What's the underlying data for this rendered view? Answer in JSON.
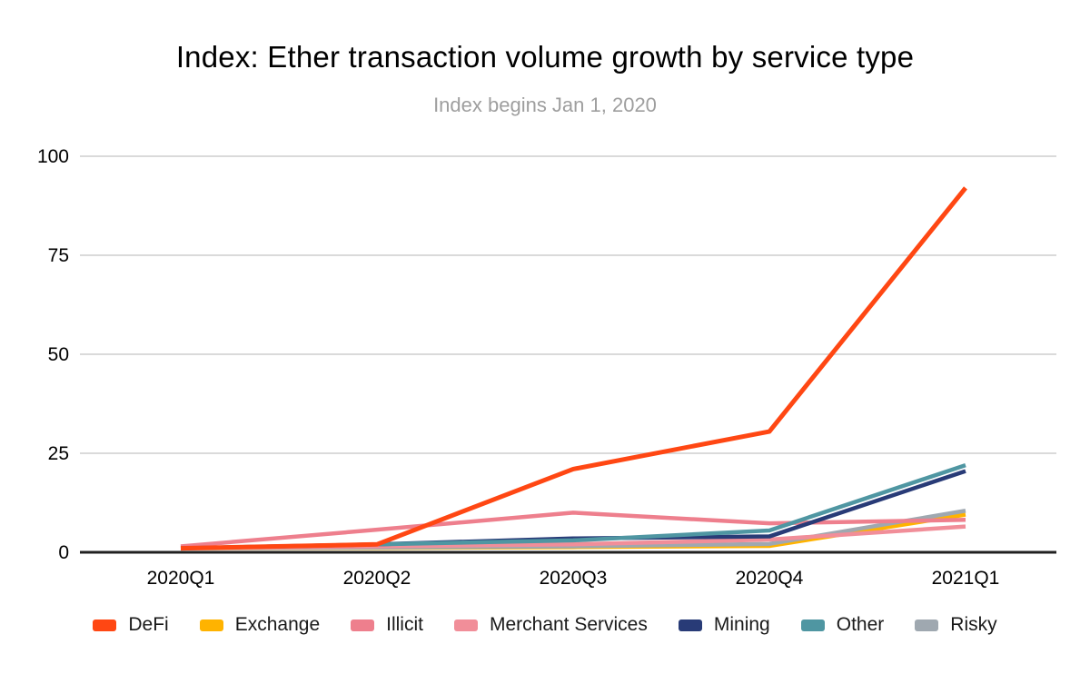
{
  "header": {
    "title": "Index: Ether transaction volume growth by service type",
    "subtitle": "Index begins Jan 1, 2020"
  },
  "chart_data": {
    "type": "line",
    "title": "Index: Ether transaction volume growth by service type",
    "subtitle": "Index begins Jan 1, 2020",
    "categories": [
      "2020Q1",
      "2020Q2",
      "2020Q3",
      "2020Q4",
      "2021Q1"
    ],
    "series": [
      {
        "name": "DeFi",
        "color": "#FF4713",
        "values": [
          1,
          2,
          21,
          30.5,
          92
        ]
      },
      {
        "name": "Exchange",
        "color": "#FFB300",
        "values": [
          1,
          1.1,
          1.3,
          1.6,
          9.5
        ]
      },
      {
        "name": "Illicit",
        "color": "#EE7F8D",
        "values": [
          1.5,
          5.7,
          10,
          7.3,
          8.2
        ]
      },
      {
        "name": "Merchant Services",
        "color": "#F18E99",
        "values": [
          1,
          1.5,
          2,
          3.2,
          6.5
        ]
      },
      {
        "name": "Mining",
        "color": "#283B77",
        "values": [
          1,
          2,
          3.5,
          4,
          20.5
        ]
      },
      {
        "name": "Other",
        "color": "#4F96A2",
        "values": [
          1,
          2,
          3,
          5.5,
          22
        ]
      },
      {
        "name": "Risky",
        "color": "#9FA8B0",
        "values": [
          1,
          1.2,
          1.5,
          2.1,
          10.5
        ]
      }
    ],
    "xlabel": "",
    "ylabel": "",
    "ylim": [
      0,
      100
    ],
    "yticks": [
      0,
      25,
      50,
      75,
      100
    ],
    "grid": true,
    "legend_position": "bottom",
    "colors": {
      "gridline": "#dadada",
      "axis_line": "#212121",
      "tick_label": "#000000"
    }
  }
}
